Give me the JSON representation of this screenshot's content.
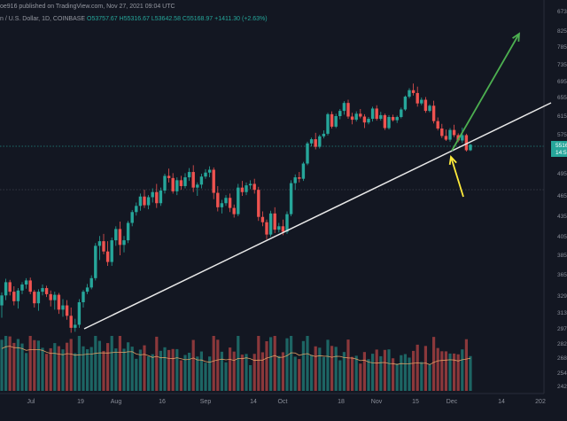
{
  "header": {
    "publisher": "oe916 published on TradingView.com, Nov 27, 2021 09:04 UTC",
    "symbol": "n / U.S. Dollar, 1D, COINBASE",
    "open": "O53757.67",
    "high": "H55316.67",
    "low": "L53642.58",
    "close": "C55168.97",
    "change": "+1411.30 (+2.63%)"
  },
  "chart_data": {
    "type": "candlestick",
    "y_axis_labels": [
      "8250",
      "7850",
      "7350",
      "6950",
      "6550",
      "6150",
      "5750",
      "5350",
      "4950",
      "4650",
      "4350",
      "4050",
      "3850",
      "3650",
      "3290",
      "3130",
      "2970",
      "2820",
      "2680",
      "2540",
      "2420"
    ],
    "y_axis_top_label": "6730",
    "last_price_badge": "5516",
    "last_price_sub": "14:5",
    "x_axis_labels": [
      "Jul",
      "19",
      "Aug",
      "16",
      "Sep",
      "14",
      "Oct",
      "18",
      "Nov",
      "15",
      "Dec",
      "14",
      "202"
    ],
    "trendline": {
      "from": [
        "Jul 20",
        29000
      ],
      "to": [
        "Dec 31",
        62000
      ]
    },
    "arrows": [
      {
        "color": "#4caf50",
        "direction": "up",
        "from": [
          "Nov 27",
          54000
        ],
        "to": [
          "Dec 14",
          82000
        ]
      },
      {
        "color": "#ffeb3b",
        "direction": "up",
        "from": [
          "Dec 1",
          46000
        ],
        "to": [
          "Nov 27",
          54000
        ]
      }
    ],
    "colors": {
      "up": "#26a69a",
      "down": "#ef5350",
      "volume_ma": "#f0a868",
      "background": "#131722"
    },
    "series": [
      {
        "values": [
          [
            32000,
            33500,
            30800,
            33000
          ],
          [
            33000,
            35800,
            32500,
            35200
          ],
          [
            35200,
            35600,
            33000,
            33600
          ],
          [
            33600,
            34500,
            32000,
            32400
          ],
          [
            32400,
            34200,
            31700,
            33800
          ],
          [
            33800,
            35200,
            33200,
            34800
          ],
          [
            34800,
            35900,
            34100,
            35500
          ],
          [
            35500,
            36000,
            33200,
            33600
          ],
          [
            33600,
            33900,
            31800,
            32200
          ],
          [
            32200,
            34000,
            31500,
            33600
          ],
          [
            33600,
            34800,
            33000,
            34200
          ],
          [
            34200,
            34600,
            32800,
            33200
          ],
          [
            33200,
            33800,
            31900,
            32500
          ],
          [
            32500,
            33600,
            31600,
            33100
          ],
          [
            33100,
            33400,
            31200,
            31600
          ],
          [
            31600,
            32600,
            30900,
            32000
          ],
          [
            32000,
            32500,
            30600,
            31000
          ],
          [
            31000,
            31800,
            29300,
            29800
          ],
          [
            29800,
            30700,
            29400,
            30100
          ],
          [
            30100,
            32600,
            29800,
            32300
          ],
          [
            32300,
            33900,
            31800,
            33600
          ],
          [
            33600,
            34900,
            33200,
            34300
          ],
          [
            34300,
            36400,
            34000,
            35900
          ],
          [
            35900,
            39800,
            35500,
            39500
          ],
          [
            39500,
            40600,
            38000,
            40000
          ],
          [
            40000,
            40900,
            38600,
            38900
          ],
          [
            38900,
            40000,
            37400,
            37800
          ],
          [
            37800,
            40400,
            37400,
            40100
          ],
          [
            40100,
            42000,
            39500,
            41600
          ],
          [
            41600,
            42700,
            38500,
            39600
          ],
          [
            39600,
            40600,
            38800,
            40100
          ],
          [
            40100,
            42800,
            39800,
            42500
          ],
          [
            42500,
            44400,
            42000,
            44100
          ],
          [
            44100,
            45500,
            43600,
            45000
          ],
          [
            45000,
            46800,
            44300,
            46400
          ],
          [
            46400,
            47300,
            44700,
            45100
          ],
          [
            45100,
            46600,
            44500,
            46300
          ],
          [
            46300,
            47500,
            45500,
            47000
          ],
          [
            47000,
            48100,
            44700,
            45400
          ],
          [
            45400,
            47600,
            45000,
            47200
          ],
          [
            47200,
            49500,
            46800,
            49200
          ],
          [
            49200,
            50400,
            48300,
            48900
          ],
          [
            48900,
            49600,
            46800,
            47100
          ],
          [
            47100,
            49000,
            46600,
            48600
          ],
          [
            48600,
            49200,
            47300,
            47800
          ],
          [
            47800,
            49600,
            47500,
            49000
          ],
          [
            49000,
            50500,
            48500,
            49800
          ],
          [
            49800,
            51000,
            47000,
            47600
          ],
          [
            47600,
            48300,
            46500,
            48000
          ],
          [
            48000,
            49500,
            47500,
            49100
          ],
          [
            49100,
            50300,
            48800,
            49700
          ],
          [
            49700,
            50800,
            49000,
            50200
          ],
          [
            50200,
            50600,
            46000,
            46900
          ],
          [
            46900,
            47800,
            44200,
            44800
          ],
          [
            44800,
            45900,
            43900,
            45400
          ],
          [
            45400,
            46600,
            45000,
            46200
          ],
          [
            46200,
            46800,
            44100,
            44700
          ],
          [
            44700,
            45200,
            43300,
            43800
          ],
          [
            43800,
            48100,
            43500,
            47600
          ],
          [
            47600,
            48500,
            46500,
            47000
          ],
          [
            47000,
            48300,
            46600,
            47900
          ],
          [
            47900,
            48600,
            47400,
            48100
          ],
          [
            48100,
            48800,
            46800,
            47300
          ],
          [
            47300,
            47700,
            42800,
            43400
          ],
          [
            43400,
            44200,
            42000,
            42600
          ],
          [
            42600,
            43000,
            40200,
            40800
          ],
          [
            40800,
            44300,
            40500,
            43900
          ],
          [
            43900,
            44800,
            41000,
            41500
          ],
          [
            41500,
            42500,
            41100,
            42000
          ],
          [
            42000,
            43000,
            40700,
            41200
          ],
          [
            41200,
            44200,
            40900,
            43800
          ],
          [
            43800,
            48600,
            43500,
            48200
          ],
          [
            48200,
            49400,
            47300,
            49000
          ],
          [
            49000,
            49800,
            48300,
            48800
          ],
          [
            48800,
            51600,
            48500,
            51300
          ],
          [
            51300,
            55800,
            51000,
            55400
          ],
          [
            55400,
            56800,
            54700,
            56400
          ],
          [
            56400,
            57900,
            54000,
            54600
          ],
          [
            54600,
            57500,
            54200,
            57100
          ],
          [
            57100,
            58400,
            56600,
            57700
          ],
          [
            57700,
            62200,
            57300,
            61900
          ],
          [
            61900,
            62500,
            58800,
            59200
          ],
          [
            59200,
            62000,
            58900,
            61500
          ],
          [
            61500,
            63000,
            60800,
            62600
          ],
          [
            62600,
            64700,
            61800,
            64300
          ],
          [
            64300,
            65000,
            60900,
            61400
          ],
          [
            61400,
            62200,
            59700,
            60700
          ],
          [
            60700,
            62500,
            60300,
            62000
          ],
          [
            62000,
            63000,
            61000,
            61400
          ],
          [
            61400,
            61900,
            58900,
            60100
          ],
          [
            60100,
            61300,
            59700,
            60900
          ],
          [
            60900,
            63500,
            60300,
            63100
          ],
          [
            63100,
            63800,
            60500,
            60900
          ],
          [
            60900,
            62400,
            60500,
            61700
          ],
          [
            61700,
            62000,
            58500,
            58900
          ],
          [
            58900,
            61700,
            58600,
            61300
          ],
          [
            61300,
            61800,
            60300,
            60600
          ],
          [
            60600,
            61600,
            60000,
            61300
          ],
          [
            61300,
            63300,
            61000,
            62900
          ],
          [
            62900,
            66000,
            62600,
            65700
          ],
          [
            65700,
            67800,
            65300,
            67300
          ],
          [
            67300,
            69000,
            66000,
            66600
          ],
          [
            66600,
            68200,
            63500,
            64200
          ],
          [
            64200,
            65500,
            63800,
            65000
          ],
          [
            65000,
            65600,
            62200,
            62600
          ],
          [
            62600,
            64000,
            62300,
            63700
          ],
          [
            63700,
            64800,
            59900,
            60400
          ],
          [
            60400,
            61200,
            58400,
            58800
          ],
          [
            58800,
            59800,
            56700,
            57200
          ],
          [
            57200,
            58600,
            56000,
            56300
          ],
          [
            56300,
            58900,
            55800,
            58500
          ],
          [
            58500,
            59600,
            56900,
            57400
          ],
          [
            57400,
            57800,
            55700,
            56100
          ],
          [
            56100,
            59000,
            55500,
            57400
          ],
          [
            57400,
            57700,
            53500,
            53800
          ],
          [
            53800,
            55300,
            53600,
            55100
          ]
        ]
      }
    ]
  }
}
